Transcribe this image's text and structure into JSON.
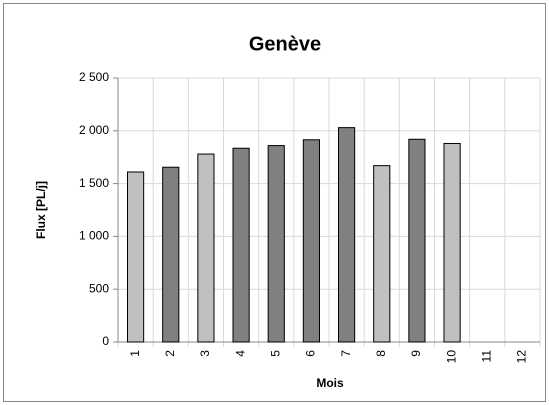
{
  "chart_data": {
    "type": "bar",
    "title": "Genève",
    "x_label": "Mois",
    "y_label": "Flux [PL/j]",
    "categories": [
      "1",
      "2",
      "3",
      "4",
      "5",
      "6",
      "7",
      "8",
      "9",
      "10",
      "11",
      "12"
    ],
    "values": [
      1610,
      1655,
      1780,
      1835,
      1860,
      1915,
      2030,
      1670,
      1920,
      1880,
      null,
      null
    ],
    "colors": [
      "#c0c0c0",
      "#808080",
      "#c0c0c0",
      "#808080",
      "#808080",
      "#808080",
      "#808080",
      "#c0c0c0",
      "#808080",
      "#c0c0c0",
      "#808080",
      "#808080"
    ],
    "ylim": [
      0,
      2500
    ],
    "yticks": [
      0,
      500,
      {
        "value": 1000,
        "label": "1 000"
      },
      {
        "value": 1500,
        "label": "1 500"
      },
      {
        "value": 2000,
        "label": "2 000"
      },
      {
        "value": 2500,
        "label": "2 500"
      }
    ],
    "grid": true
  }
}
